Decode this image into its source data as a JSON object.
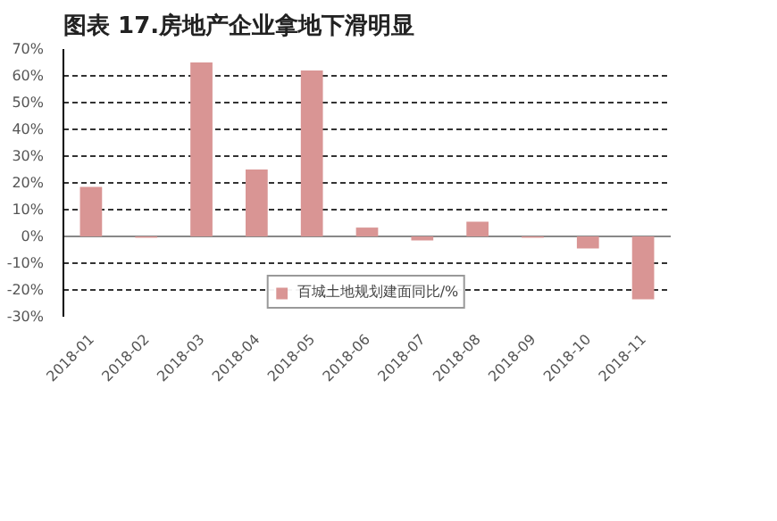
{
  "chart_data": {
    "type": "bar",
    "title": "图表 17.房地产企业拿地下滑明显",
    "categories": [
      "2018-01",
      "2018-02",
      "2018-03",
      "2018-04",
      "2018-05",
      "2018-06",
      "2018-07",
      "2018-08",
      "2018-09",
      "2018-10",
      "2018-11"
    ],
    "series": [
      {
        "name": "百城土地规划建面同比/%",
        "color": "#d99594",
        "values": [
          18.5,
          -0.5,
          65,
          25,
          62,
          3.3,
          -1.5,
          5.5,
          -0.5,
          -4.5,
          -23.5
        ]
      }
    ],
    "ylim": [
      -30,
      70
    ],
    "yticks": [
      {
        "value": -30,
        "label": "-30%"
      },
      {
        "value": -20,
        "label": "-20%"
      },
      {
        "value": -10,
        "label": "-10%"
      },
      {
        "value": 0,
        "label": "0%"
      },
      {
        "value": 10,
        "label": "10%"
      },
      {
        "value": 20,
        "label": "20%"
      },
      {
        "value": 30,
        "label": "30%"
      },
      {
        "value": 40,
        "label": "40%"
      },
      {
        "value": 50,
        "label": "50%"
      },
      {
        "value": 60,
        "label": "60%"
      },
      {
        "value": 70,
        "label": "70%"
      }
    ],
    "grid": "y",
    "legend": "bottom"
  }
}
